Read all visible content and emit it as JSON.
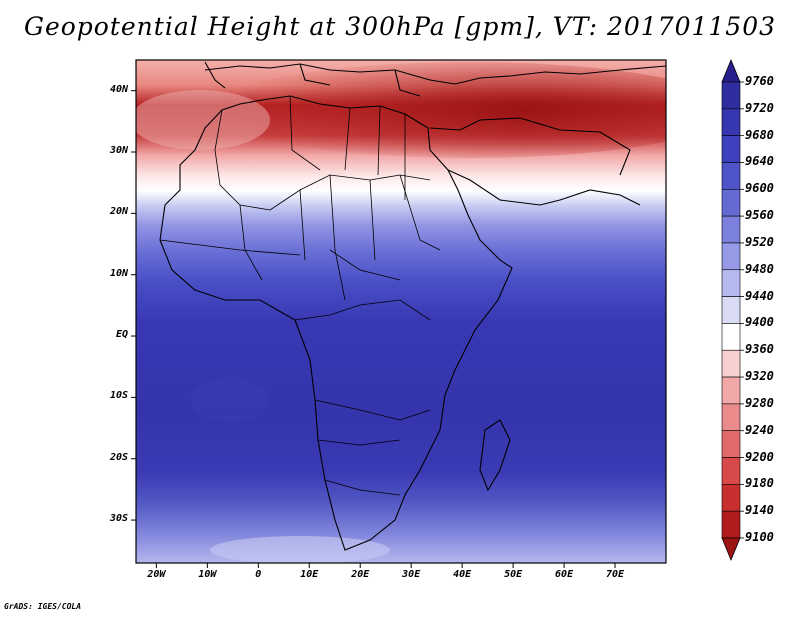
{
  "title": "Geopotential Height at 300hPa [gpm], VT: 2017011503",
  "credit": "GrADS: IGES/COLA",
  "map": {
    "region": "Africa",
    "lon_range": [
      -24,
      80
    ],
    "lat_range": [
      -37,
      45
    ],
    "lat_ticks": [
      {
        "value": 40,
        "label": "40N"
      },
      {
        "value": 30,
        "label": "30N"
      },
      {
        "value": 20,
        "label": "20N"
      },
      {
        "value": 10,
        "label": "10N"
      },
      {
        "value": 0,
        "label": "EQ"
      },
      {
        "value": -10,
        "label": "10S"
      },
      {
        "value": -20,
        "label": "20S"
      },
      {
        "value": -30,
        "label": "30S"
      }
    ],
    "lon_ticks": [
      {
        "value": -20,
        "label": "20W"
      },
      {
        "value": -10,
        "label": "10W"
      },
      {
        "value": 0,
        "label": "0"
      },
      {
        "value": 10,
        "label": "10E"
      },
      {
        "value": 20,
        "label": "20E"
      },
      {
        "value": 30,
        "label": "30E"
      },
      {
        "value": 40,
        "label": "40E"
      },
      {
        "value": 50,
        "label": "50E"
      },
      {
        "value": 60,
        "label": "60E"
      },
      {
        "value": 70,
        "label": "70E"
      }
    ]
  },
  "colorbar": {
    "levels": [
      "9760",
      "9720",
      "9680",
      "9640",
      "9600",
      "9560",
      "9520",
      "9480",
      "9440",
      "9400",
      "9360",
      "9320",
      "9280",
      "9240",
      "9200",
      "9180",
      "9140",
      "9100"
    ],
    "colors": [
      "#2a1f8f",
      "#2e2ea0",
      "#3636b0",
      "#3e40bd",
      "#4f55c8",
      "#6469d3",
      "#7b80dd",
      "#969ae6",
      "#b6b9ef",
      "#dadcf6",
      "#ffffff",
      "#f8d0d0",
      "#f2a8a8",
      "#ea8a8a",
      "#e06a6a",
      "#d84a4a",
      "#c83030",
      "#b01c1c",
      "#9c1414"
    ]
  }
}
